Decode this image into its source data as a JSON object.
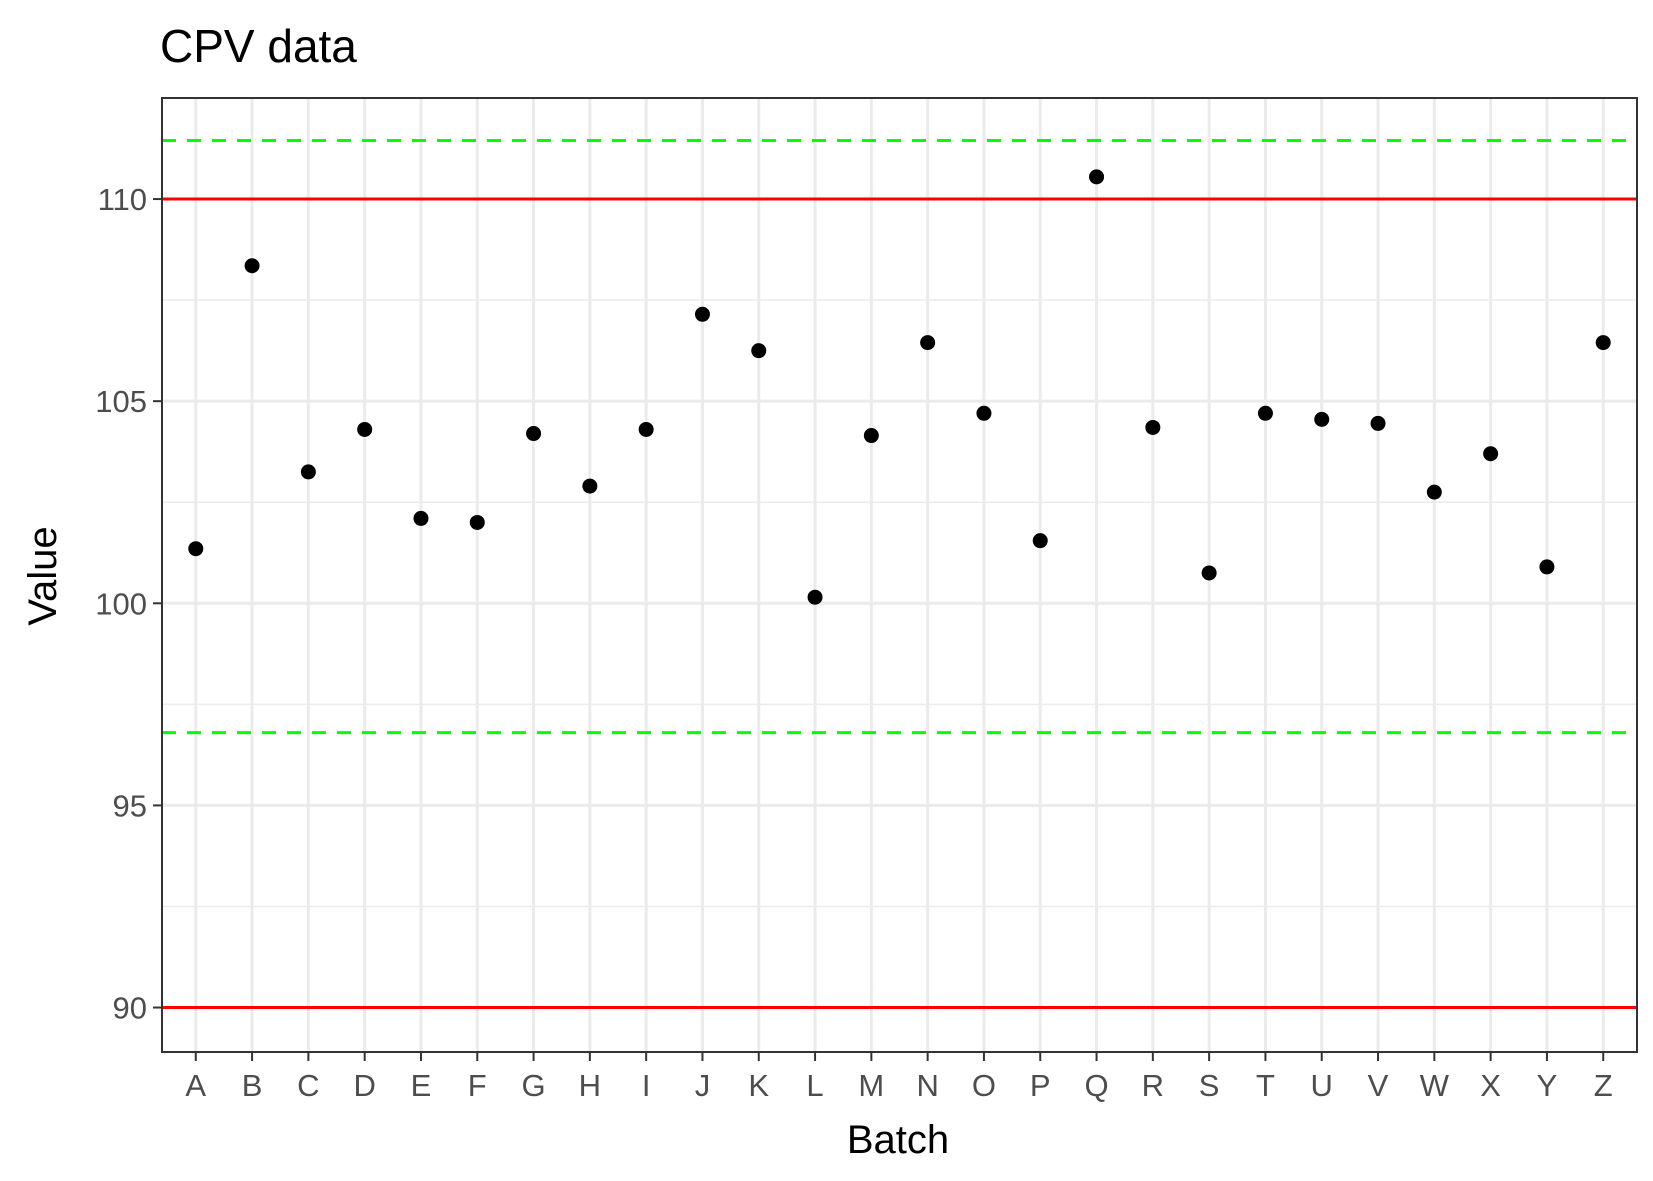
{
  "chart_data": {
    "type": "scatter",
    "title": "CPV data",
    "xlabel": "Batch",
    "ylabel": "Value",
    "categories": [
      "A",
      "B",
      "C",
      "D",
      "E",
      "F",
      "G",
      "H",
      "I",
      "J",
      "K",
      "L",
      "M",
      "N",
      "O",
      "P",
      "Q",
      "R",
      "S",
      "T",
      "U",
      "V",
      "W",
      "X",
      "Y",
      "Z"
    ],
    "values": [
      101.35,
      108.35,
      103.25,
      104.3,
      102.1,
      102.0,
      104.2,
      102.9,
      104.3,
      107.15,
      106.25,
      100.15,
      104.15,
      106.45,
      104.7,
      101.55,
      110.55,
      104.35,
      100.75,
      104.7,
      104.55,
      104.45,
      102.75,
      103.7,
      100.9,
      106.45
    ],
    "ylim": [
      88.9,
      112.5
    ],
    "yticks": [
      90,
      95,
      100,
      105,
      110
    ],
    "grid": true,
    "reference_lines": [
      {
        "kind": "specification limit",
        "value": 110,
        "color": "#ff0000",
        "style": "solid"
      },
      {
        "kind": "specification limit",
        "value": 90,
        "color": "#ff0000",
        "style": "solid"
      },
      {
        "kind": "control limit",
        "value": 111.45,
        "color": "#00ff00",
        "style": "dashed"
      },
      {
        "kind": "control limit",
        "value": 96.8,
        "color": "#00ff00",
        "style": "dashed"
      }
    ],
    "point_color": "#000000",
    "grid_color": "#ebebeb",
    "panel_border_color": "#333333"
  }
}
